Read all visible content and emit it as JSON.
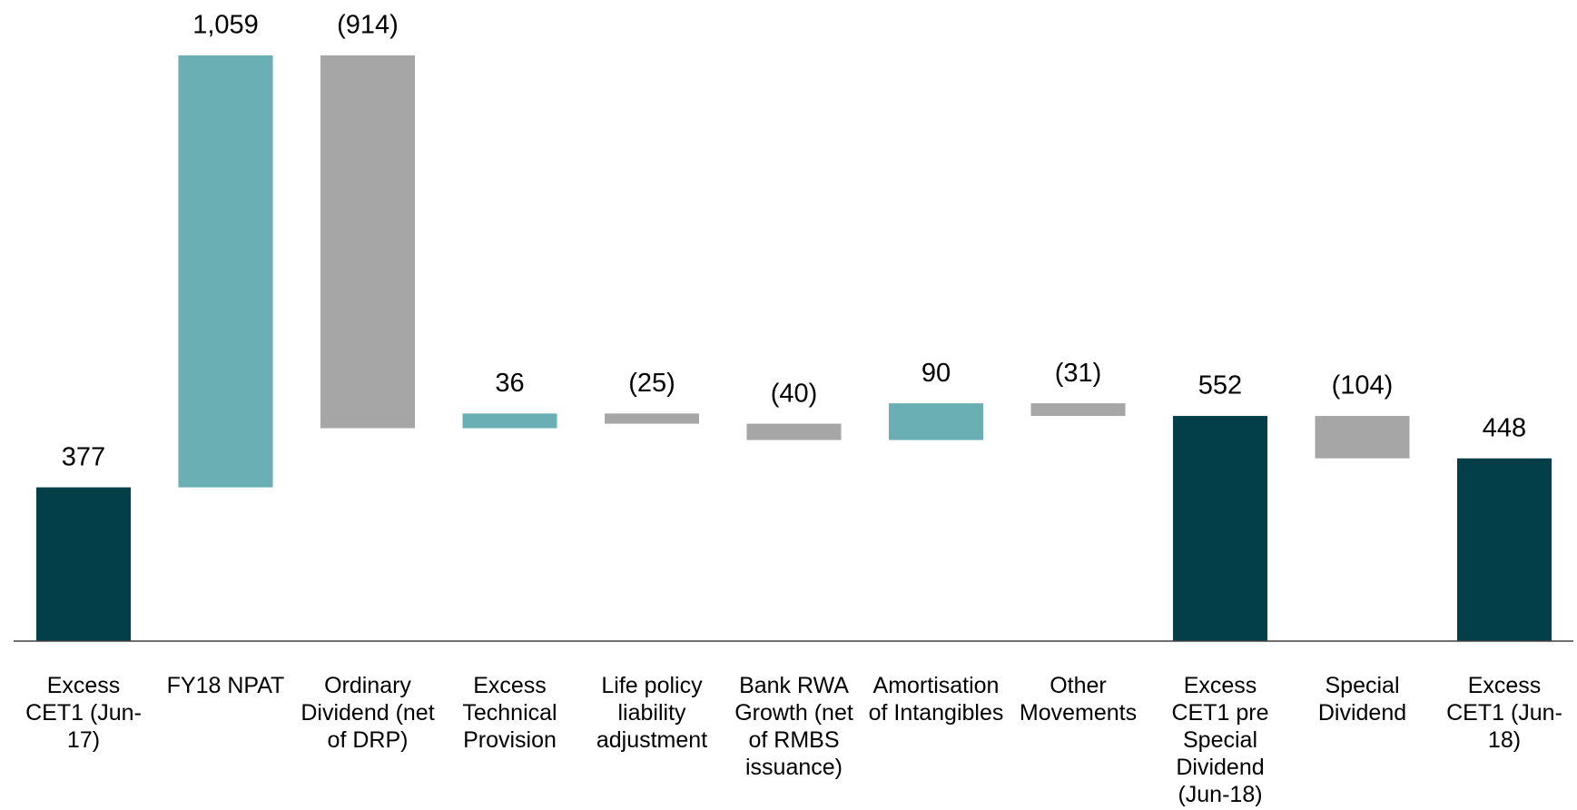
{
  "chart_data": {
    "type": "waterfall",
    "categories": [
      "Excess CET1 (Jun-17)",
      "FY18 NPAT",
      "Ordinary Dividend (net of DRP)",
      "Excess Technical Provision",
      "Life policy liability adjustment",
      "Bank RWA Growth (net of RMBS issuance)",
      "Amortisation of Intangibles",
      "Other Movements",
      "Excess CET1 pre Special Dividend (Jun-18)",
      "Special Dividend",
      "Excess CET1 (Jun-18)"
    ],
    "values": [
      377,
      1059,
      -914,
      36,
      -25,
      -40,
      90,
      -31,
      552,
      -104,
      448
    ],
    "value_labels": [
      "377",
      "1,059",
      "(914)",
      "36",
      "(25)",
      "(40)",
      "90",
      "(31)",
      "552",
      "(104)",
      "448"
    ],
    "totals": [
      0,
      8,
      10
    ],
    "colors": {
      "total": "#023f48",
      "increase": "#6aafb4",
      "decrease": "#a6a6a6"
    }
  }
}
